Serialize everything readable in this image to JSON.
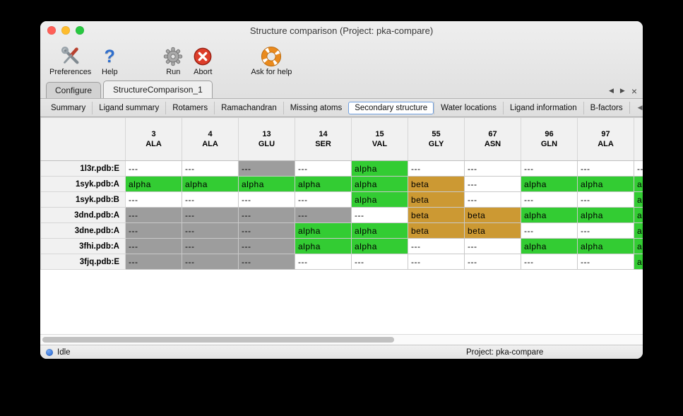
{
  "window": {
    "title": "Structure comparison (Project: pka-compare)"
  },
  "toolbar": {
    "items": [
      {
        "label": "Preferences",
        "icon": "tools-icon"
      },
      {
        "label": "Help",
        "icon": "help-icon",
        "glyph": "?"
      },
      {
        "label": "Run",
        "icon": "gear-icon"
      },
      {
        "label": "Abort",
        "icon": "abort-icon"
      },
      {
        "label": "Ask for help",
        "icon": "lifebuoy-icon"
      }
    ]
  },
  "tabs_primary": {
    "items": [
      {
        "label": "Configure",
        "selected": false
      },
      {
        "label": "StructureComparison_1",
        "selected": true
      }
    ],
    "nav": {
      "prev": "◀",
      "next": "▶",
      "close": "×"
    }
  },
  "tabs_secondary": {
    "items": [
      "Summary",
      "Ligand summary",
      "Rotamers",
      "Ramachandran",
      "Missing atoms",
      "Secondary structure",
      "Water locations",
      "Ligand information",
      "B-factors"
    ],
    "selected": "Secondary structure",
    "nav": {
      "prev": "◀",
      "next": "▶"
    }
  },
  "table": {
    "columns": [
      {
        "num": "3",
        "res": "ALA"
      },
      {
        "num": "4",
        "res": "ALA"
      },
      {
        "num": "13",
        "res": "GLU"
      },
      {
        "num": "14",
        "res": "SER"
      },
      {
        "num": "15",
        "res": "VAL"
      },
      {
        "num": "55",
        "res": "GLY"
      },
      {
        "num": "67",
        "res": "ASN"
      },
      {
        "num": "96",
        "res": "GLN"
      },
      {
        "num": "97",
        "res": "ALA"
      },
      {
        "num": "",
        "res": ""
      }
    ],
    "cell_types": {
      "blank": {
        "text": "---",
        "bg": "#ffffff"
      },
      "gap": {
        "text": "---",
        "bg": "#9d9d9d"
      },
      "alpha": {
        "text": "alpha",
        "bg": "#33cc33"
      },
      "beta": {
        "text": "beta",
        "bg": "#cc9933"
      }
    },
    "rows": [
      {
        "label": "1l3r.pdb:E",
        "cells": [
          "blank",
          "blank",
          "gap",
          "blank",
          "alpha",
          "blank",
          "blank",
          "blank",
          "blank",
          "blank"
        ]
      },
      {
        "label": "1syk.pdb:A",
        "cells": [
          "alpha",
          "alpha",
          "alpha",
          "alpha",
          "alpha",
          "beta",
          "blank",
          "alpha",
          "alpha",
          "alpha"
        ]
      },
      {
        "label": "1syk.pdb:B",
        "cells": [
          "blank",
          "blank",
          "blank",
          "blank",
          "alpha",
          "beta",
          "blank",
          "blank",
          "blank",
          "alpha"
        ]
      },
      {
        "label": "3dnd.pdb:A",
        "cells": [
          "gap",
          "gap",
          "gap",
          "gap",
          "blank",
          "beta",
          "beta",
          "alpha",
          "alpha",
          "alpha"
        ]
      },
      {
        "label": "3dne.pdb:A",
        "cells": [
          "gap",
          "gap",
          "gap",
          "alpha",
          "alpha",
          "beta",
          "beta",
          "blank",
          "blank",
          "alpha"
        ]
      },
      {
        "label": "3fhi.pdb:A",
        "cells": [
          "gap",
          "gap",
          "gap",
          "alpha",
          "alpha",
          "blank",
          "blank",
          "alpha",
          "alpha",
          "alpha"
        ]
      },
      {
        "label": "3fjq.pdb:E",
        "cells": [
          "gap",
          "gap",
          "gap",
          "blank",
          "blank",
          "blank",
          "blank",
          "blank",
          "blank",
          "alpha"
        ]
      }
    ]
  },
  "statusbar": {
    "status": "Idle",
    "project": "Project: pka-compare"
  },
  "colors": {
    "alpha": "#33cc33",
    "beta": "#cc9933",
    "missing_gray": "#9d9d9d",
    "selected_tab_border": "#6f9fe0",
    "traffic_red": "#ff5f57",
    "traffic_yellow": "#febc2e",
    "traffic_green": "#28c840",
    "status_dot_blue": "#1d5fd0"
  }
}
